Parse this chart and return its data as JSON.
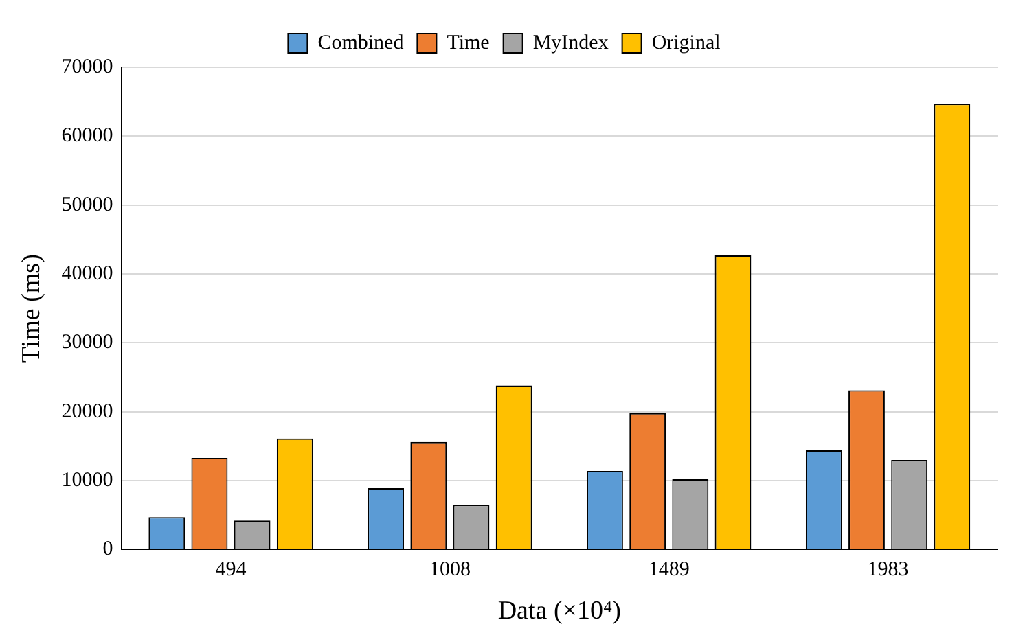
{
  "chart_data": {
    "type": "bar",
    "xlabel": "Data (×10⁴)",
    "ylabel": "Time (ms)",
    "categories": [
      "494",
      "1008",
      "1489",
      "1983"
    ],
    "series": [
      {
        "name": "Combined",
        "color": "#5b9bd5",
        "values": [
          4700,
          8900,
          11400,
          14400
        ]
      },
      {
        "name": "Time",
        "color": "#ed7d31",
        "values": [
          13300,
          15600,
          19800,
          23100
        ]
      },
      {
        "name": "MyIndex",
        "color": "#a5a5a5",
        "values": [
          4200,
          6500,
          10200,
          13000
        ]
      },
      {
        "name": "Original",
        "color": "#ffc000",
        "values": [
          16100,
          23800,
          42700,
          64700
        ]
      }
    ],
    "ylim": [
      0,
      70000
    ],
    "yticks": [
      0,
      10000,
      20000,
      30000,
      40000,
      50000,
      60000,
      70000
    ],
    "grid": "y",
    "legend": "top"
  }
}
